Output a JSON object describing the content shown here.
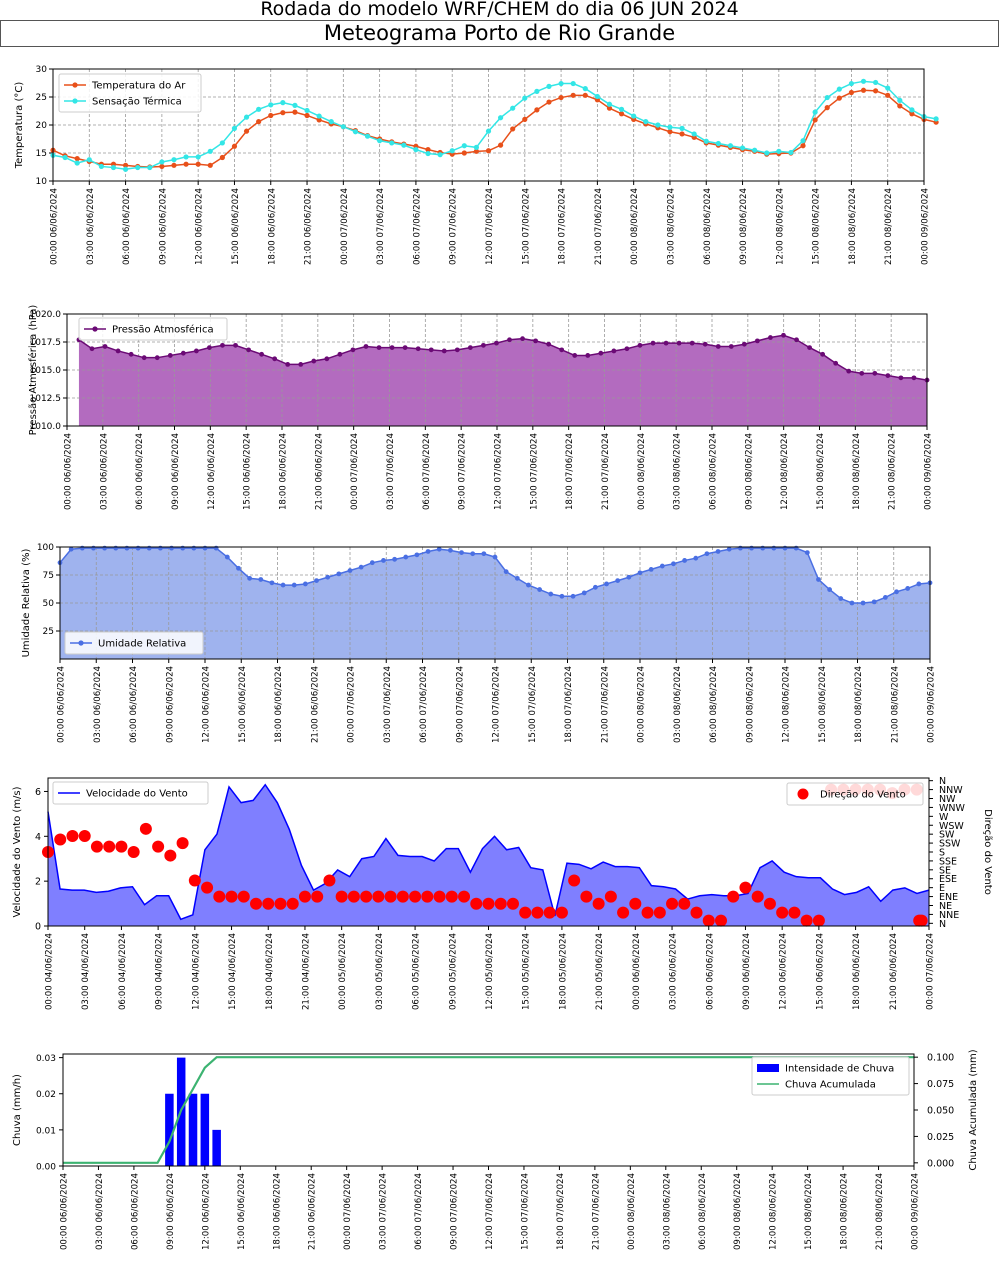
{
  "header": {
    "title": "Rodada do modelo WRF/CHEM do dia 06 JUN 2024",
    "subtitle": "Meteograma Porto de Rio Grande"
  },
  "colors": {
    "temperature": "#e8501a",
    "sensation": "#33e6e6",
    "pressure_line": "#6b0a75",
    "pressure_fill": "#b36bbf",
    "humidity_line": "#4a6fe3",
    "humidity_fill": "#9fb3ee",
    "wind_line": "#0000ff",
    "wind_fill": "#7f7fff",
    "wind_dir": "#ff0000",
    "rain_bar": "#0000ff",
    "rain_acc": "#3cb371",
    "grid": "#999999"
  },
  "chart_data": [
    {
      "id": "temperature",
      "type": "line",
      "ylabel": "Temperatura (°C)",
      "ylim": [
        10,
        30
      ],
      "yticks": [
        10,
        15,
        20,
        25,
        30
      ],
      "xticks": [
        "00:00 06/06/2024",
        "03:00 06/06/2024",
        "06:00 06/06/2024",
        "09:00 06/06/2024",
        "12:00 06/06/2024",
        "15:00 06/06/2024",
        "18:00 06/06/2024",
        "21:00 06/06/2024",
        "00:00 07/06/2024",
        "03:00 07/06/2024",
        "06:00 07/06/2024",
        "09:00 07/06/2024",
        "12:00 07/06/2024",
        "15:00 07/06/2024",
        "18:00 07/06/2024",
        "21:00 07/06/2024",
        "00:00 08/06/2024",
        "03:00 08/06/2024",
        "06:00 08/06/2024",
        "09:00 08/06/2024",
        "12:00 08/06/2024",
        "15:00 08/06/2024",
        "18:00 08/06/2024",
        "21:00 08/06/2024",
        "00:00 09/06/2024"
      ],
      "legend_position": "upper-left",
      "grid": true,
      "series": [
        {
          "name": "Temperatura do Ar",
          "color_key": "temperature",
          "values": [
            15.5,
            14.5,
            14.0,
            13.5,
            13.0,
            13.0,
            12.8,
            12.6,
            12.5,
            12.6,
            12.8,
            13.0,
            13.0,
            12.8,
            14.2,
            16.2,
            18.9,
            20.6,
            21.7,
            22.2,
            22.3,
            21.7,
            20.9,
            20.2,
            19.7,
            19.0,
            18.1,
            17.5,
            17.0,
            16.6,
            16.2,
            15.6,
            15.1,
            14.8,
            15.0,
            15.3,
            15.4,
            16.4,
            19.3,
            21.0,
            22.7,
            24.1,
            24.9,
            25.3,
            25.3,
            24.5,
            23.0,
            22.0,
            21.0,
            20.2,
            19.5,
            18.8,
            18.4,
            17.8,
            16.8,
            16.4,
            16.0,
            15.6,
            15.3,
            14.8,
            14.9,
            15.0,
            16.3,
            20.9,
            23.1,
            24.8,
            25.8,
            26.2,
            26.1,
            25.3,
            23.4,
            22.0,
            21.0,
            20.5
          ],
          "marker_line": "#e8501a"
        },
        {
          "name": "Sensação Térmica",
          "color_key": "sensation",
          "values": [
            14.6,
            14.2,
            13.2,
            13.8,
            12.6,
            12.4,
            12.1,
            12.4,
            12.4,
            13.4,
            13.8,
            14.3,
            14.3,
            15.3,
            16.8,
            19.4,
            21.4,
            22.8,
            23.6,
            24.0,
            23.5,
            22.6,
            21.6,
            20.6,
            19.7,
            18.8,
            18.0,
            17.2,
            16.8,
            16.4,
            15.6,
            14.9,
            14.7,
            15.4,
            16.3,
            16.0,
            18.9,
            21.3,
            23.0,
            24.8,
            26.0,
            26.9,
            27.4,
            27.4,
            26.5,
            25.1,
            23.7,
            22.8,
            21.6,
            20.6,
            20.0,
            19.6,
            19.4,
            18.4,
            17.1,
            16.7,
            16.3,
            15.9,
            15.5,
            15.0,
            15.3,
            15.1,
            17.2,
            22.3,
            24.9,
            26.4,
            27.4,
            27.8,
            27.6,
            26.6,
            24.4,
            22.7,
            21.5,
            21.1
          ]
        }
      ]
    },
    {
      "id": "pressure",
      "type": "area",
      "ylabel": "Pressão Atmosférica (hPa)",
      "ylim": [
        1010.0,
        1020.0
      ],
      "yticks": [
        "1010.0",
        "1012.5",
        "1015.0",
        "1017.5",
        "1020.0"
      ],
      "xticks": [
        "00:00 06/06/2024",
        "03:00 06/06/2024",
        "06:00 06/06/2024",
        "09:00 06/06/2024",
        "12:00 06/06/2024",
        "15:00 06/06/2024",
        "18:00 06/06/2024",
        "21:00 06/06/2024",
        "00:00 07/06/2024",
        "03:00 07/06/2024",
        "06:00 07/06/2024",
        "09:00 07/06/2024",
        "12:00 07/06/2024",
        "15:00 07/06/2024",
        "18:00 07/06/2024",
        "21:00 07/06/2024",
        "00:00 08/06/2024",
        "03:00 08/06/2024",
        "06:00 08/06/2024",
        "09:00 08/06/2024",
        "12:00 08/06/2024",
        "15:00 08/06/2024",
        "18:00 08/06/2024",
        "21:00 08/06/2024",
        "00:00 09/06/2024"
      ],
      "legend_position": "upper-left",
      "grid": true,
      "series": [
        {
          "name": "Pressão Atmosférica",
          "color_key": "pressure_line",
          "start_hour": 1,
          "values": [
            1017.7,
            1016.9,
            1017.1,
            1016.7,
            1016.4,
            1016.1,
            1016.1,
            1016.3,
            1016.5,
            1016.7,
            1017.0,
            1017.2,
            1017.2,
            1016.8,
            1016.4,
            1016.0,
            1015.5,
            1015.5,
            1015.8,
            1016.0,
            1016.4,
            1016.8,
            1017.1,
            1017.0,
            1017.0,
            1017.0,
            1016.9,
            1016.8,
            1016.7,
            1016.8,
            1017.0,
            1017.2,
            1017.4,
            1017.7,
            1017.8,
            1017.6,
            1017.3,
            1016.8,
            1016.3,
            1016.3,
            1016.5,
            1016.7,
            1016.9,
            1017.2,
            1017.4,
            1017.4,
            1017.4,
            1017.4,
            1017.3,
            1017.1,
            1017.1,
            1017.3,
            1017.6,
            1017.9,
            1018.1,
            1017.7,
            1017.0,
            1016.4,
            1015.6,
            1014.9,
            1014.7,
            1014.7,
            1014.5,
            1014.3,
            1014.3,
            1014.1
          ]
        }
      ]
    },
    {
      "id": "humidity",
      "type": "area",
      "ylabel": "Umidade Relativa (%)",
      "ylim": [
        0,
        100
      ],
      "yticks": [
        25,
        50,
        75,
        100
      ],
      "xticks": [
        "00:00 06/06/2024",
        "03:00 06/06/2024",
        "06:00 06/06/2024",
        "09:00 06/06/2024",
        "12:00 06/06/2024",
        "15:00 06/06/2024",
        "18:00 06/06/2024",
        "21:00 06/06/2024",
        "00:00 07/06/2024",
        "03:00 07/06/2024",
        "06:00 07/06/2024",
        "09:00 07/06/2024",
        "12:00 07/06/2024",
        "15:00 07/06/2024",
        "18:00 07/06/2024",
        "21:00 07/06/2024",
        "00:00 08/06/2024",
        "03:00 08/06/2024",
        "06:00 08/06/2024",
        "09:00 08/06/2024",
        "12:00 08/06/2024",
        "15:00 08/06/2024",
        "18:00 08/06/2024",
        "21:00 08/06/2024",
        "00:00 09/06/2024"
      ],
      "legend_position": "lower-left",
      "grid": true,
      "series": [
        {
          "name": "Umidade Relativa",
          "color_key": "humidity_line",
          "values": [
            86,
            98,
            99,
            99,
            99,
            99,
            99,
            99,
            99,
            99,
            99,
            99,
            99,
            99,
            99,
            91,
            81,
            72,
            71,
            68,
            66,
            66,
            67,
            70,
            73,
            76,
            79,
            82,
            86,
            88,
            89,
            91,
            93,
            96,
            98,
            97,
            95,
            94,
            94,
            91,
            78,
            72,
            66,
            62,
            58,
            56,
            56,
            59,
            64,
            67,
            70,
            73,
            77,
            80,
            83,
            85,
            88,
            90,
            94,
            96,
            98,
            99,
            99,
            99,
            99,
            99,
            99,
            95,
            71,
            62,
            54,
            50,
            50,
            51,
            55,
            60,
            63,
            67,
            68
          ]
        }
      ]
    },
    {
      "id": "wind",
      "type": "area",
      "ylabel": "Velocidade do Vento (m/s)",
      "ylabel_right": "Direção do Vento",
      "ylim": [
        0,
        6.6
      ],
      "yticks": [
        0,
        2,
        4,
        6
      ],
      "direction_labels": [
        "N",
        "NNE",
        "NE",
        "ENE",
        "E",
        "ESE",
        "SE",
        "SSE",
        "S",
        "SSW",
        "SW",
        "WSW",
        "W",
        "WNW",
        "NW",
        "NNW",
        "N"
      ],
      "xticks": [
        "00:00 04/06/2024",
        "03:00 04/06/2024",
        "06:00 04/06/2024",
        "09:00 04/06/2024",
        "12:00 04/06/2024",
        "15:00 04/06/2024",
        "18:00 04/06/2024",
        "21:00 04/06/2024",
        "00:00 05/06/2024",
        "03:00 05/06/2024",
        "06:00 05/06/2024",
        "09:00 05/06/2024",
        "12:00 05/06/2024",
        "15:00 05/06/2024",
        "18:00 05/06/2024",
        "21:00 05/06/2024",
        "00:00 06/06/2024",
        "03:00 06/06/2024",
        "06:00 06/06/2024",
        "09:00 06/06/2024",
        "12:00 06/06/2024",
        "15:00 06/06/2024",
        "18:00 06/06/2024",
        "21:00 06/06/2024",
        "00:00 07/06/2024"
      ],
      "legend_position": "upper-left",
      "legend_right_position": "upper-right",
      "grid": false,
      "series": [
        {
          "name": "Velocidade do Vento",
          "color_key": "wind_line",
          "values": [
            5.1,
            1.65,
            1.6,
            1.6,
            1.5,
            1.55,
            1.7,
            1.75,
            0.95,
            1.35,
            1.35,
            0.3,
            0.5,
            3.4,
            4.1,
            6.2,
            5.5,
            5.6,
            6.3,
            5.5,
            4.3,
            2.7,
            1.6,
            1.9,
            2.5,
            2.2,
            3.0,
            3.1,
            3.9,
            3.15,
            3.1,
            3.1,
            2.9,
            3.45,
            3.45,
            2.4,
            3.45,
            4.0,
            3.4,
            3.5,
            2.6,
            2.5,
            0.45,
            2.8,
            2.75,
            2.55,
            2.85,
            2.65,
            2.65,
            2.6,
            1.8,
            1.75,
            1.65,
            1.2,
            1.35,
            1.4,
            1.35,
            1.35,
            1.45,
            2.6,
            2.9,
            2.4,
            2.2,
            2.15,
            2.15,
            1.65,
            1.4,
            1.5,
            1.75,
            1.1,
            1.6,
            1.7,
            1.45,
            1.6
          ]
        },
        {
          "name": "Direção do Vento",
          "color_key": "wind_dir",
          "dir_values": [
            8.0,
            9.4,
            9.8,
            9.8,
            8.6,
            8.6,
            8.6,
            8.0,
            10.6,
            8.6,
            7.6,
            9.0,
            4.8,
            4.0,
            3.0,
            3.0,
            3.0,
            2.2,
            2.2,
            2.2,
            2.2,
            3.0,
            3.0,
            4.8,
            3.0,
            3.0,
            3.0,
            3.0,
            3.0,
            3.0,
            3.0,
            3.0,
            3.0,
            3.0,
            3.0,
            2.2,
            2.2,
            2.2,
            2.2,
            1.2,
            1.2,
            1.2,
            1.2,
            4.8,
            3.0,
            2.2,
            3.0,
            1.2,
            2.2,
            1.2,
            1.2,
            2.2,
            2.2,
            1.2,
            0.3,
            0.3,
            3.0,
            4.0,
            3.0,
            2.2,
            1.2,
            1.2,
            0.3,
            0.3,
            15.0,
            15.0,
            15.0,
            15.0,
            15.0,
            14.6,
            15.0,
            15.0,
            0.3,
            0.3
          ],
          "dir_hours": [
            0,
            1,
            2,
            3,
            4,
            5,
            6,
            7,
            8,
            9,
            10,
            11,
            12,
            13,
            14,
            15,
            16,
            17,
            18,
            19,
            20,
            21,
            22,
            23,
            24,
            25,
            26,
            27,
            28,
            29,
            30,
            31,
            32,
            33,
            34,
            35,
            36,
            37,
            38,
            39,
            40,
            41,
            42,
            43,
            44,
            45,
            46,
            47,
            48,
            49,
            50,
            51,
            52,
            53,
            54,
            55,
            56,
            57,
            58,
            59,
            60,
            61,
            62,
            63,
            64,
            65,
            66,
            67,
            68,
            69,
            70,
            71,
            71.2,
            71.4
          ]
        }
      ]
    },
    {
      "id": "rain",
      "type": "bar",
      "ylabel": "Chuva (mm/h)",
      "ylabel_right": "Chuva Acumulada (mm)",
      "ylim": [
        0,
        0.031
      ],
      "ylim_right": [
        -0.003,
        0.103
      ],
      "yticks": [
        "0.00",
        "0.01",
        "0.02",
        "0.03"
      ],
      "yticks_right": [
        "0.000",
        "0.025",
        "0.050",
        "0.075",
        "0.100"
      ],
      "xticks": [
        "00:00 06/06/2024",
        "03:00 06/06/2024",
        "06:00 06/06/2024",
        "09:00 06/06/2024",
        "12:00 06/06/2024",
        "15:00 06/06/2024",
        "18:00 06/06/2024",
        "21:00 06/06/2024",
        "00:00 07/06/2024",
        "03:00 07/06/2024",
        "06:00 07/06/2024",
        "09:00 07/06/2024",
        "12:00 07/06/2024",
        "15:00 07/06/2024",
        "18:00 07/06/2024",
        "21:00 07/06/2024",
        "00:00 08/06/2024",
        "03:00 08/06/2024",
        "06:00 08/06/2024",
        "09:00 08/06/2024",
        "12:00 08/06/2024",
        "15:00 08/06/2024",
        "18:00 08/06/2024",
        "21:00 08/06/2024",
        "00:00 09/06/2024"
      ],
      "legend_position": "upper-right",
      "grid": false,
      "series": [
        {
          "name": "Intensidade de Chuva",
          "color_key": "rain_bar",
          "bar_hours": [
            9,
            10,
            11,
            12,
            13
          ],
          "values": [
            0.02,
            0.03,
            0.02,
            0.02,
            0.01
          ]
        },
        {
          "name": "Chuva Acumulada",
          "color_key": "rain_acc",
          "x_hours": [
            0,
            8,
            9,
            10,
            11,
            12,
            13,
            72
          ],
          "values": [
            0.0,
            0.0,
            0.02,
            0.05,
            0.07,
            0.09,
            0.1,
            0.1
          ]
        }
      ]
    }
  ]
}
